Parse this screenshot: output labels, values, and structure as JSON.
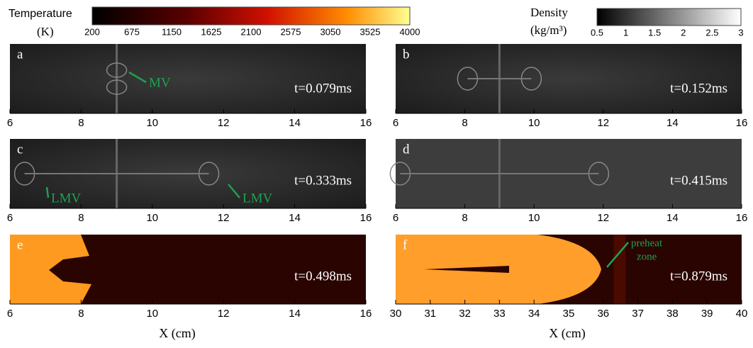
{
  "colorbars": [
    {
      "title": "Temperature",
      "unit": "(K)",
      "ticks": [
        200,
        675,
        1150,
        1625,
        2100,
        2575,
        3050,
        3525,
        4000
      ]
    },
    {
      "title": "Density",
      "unit": "(kg/m³)",
      "ticks": [
        0.5,
        1,
        1.5,
        2,
        2.5,
        3
      ]
    }
  ],
  "panels": [
    {
      "letter": "a",
      "time": "t=0.079ms",
      "annotations": [
        "MV"
      ],
      "xticks": [
        6,
        8,
        10,
        12,
        14,
        16
      ]
    },
    {
      "letter": "b",
      "time": "t=0.152ms",
      "annotations": [],
      "xticks": [
        6,
        8,
        10,
        12,
        14,
        16
      ]
    },
    {
      "letter": "c",
      "time": "t=0.333ms",
      "annotations": [
        "LMV",
        "LMV"
      ],
      "xticks": [
        6,
        8,
        10,
        12,
        14,
        16
      ]
    },
    {
      "letter": "d",
      "time": "t=0.415ms",
      "annotations": [],
      "xticks": [
        6,
        8,
        10,
        12,
        14,
        16
      ]
    },
    {
      "letter": "e",
      "time": "t=0.498ms",
      "annotations": [],
      "xticks": [
        6,
        8,
        10,
        12,
        14,
        16
      ]
    },
    {
      "letter": "f",
      "time": "t=0.879ms",
      "annotations": [
        "preheat",
        "zone"
      ],
      "xticks": [
        30,
        31,
        32,
        33,
        34,
        35,
        36,
        37,
        38,
        39,
        40
      ]
    }
  ],
  "x_labels": [
    "X (cm)",
    "X (cm)"
  ]
}
